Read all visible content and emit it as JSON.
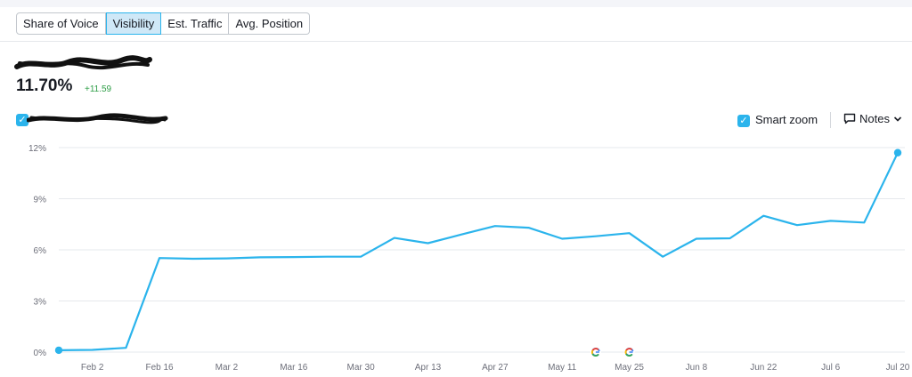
{
  "tabs": [
    {
      "label": "Share of Voice",
      "active": false
    },
    {
      "label": "Visibility",
      "active": true
    },
    {
      "label": "Est. Traffic",
      "active": false
    },
    {
      "label": "Avg. Position",
      "active": false
    }
  ],
  "summary": {
    "value": "11.70%",
    "delta": "+11.59"
  },
  "controls": {
    "smart_zoom_label": "Smart zoom",
    "smart_zoom_checked": true,
    "notes_label": "Notes"
  },
  "colors": {
    "line": "#2bb4ec",
    "grid": "#e6e8ec",
    "active_tab_bg": "#cfe8f7",
    "delta": "#2e9e47"
  },
  "icons": {
    "checkbox": "check-icon",
    "notes": "speech-bubble-icon",
    "caret": "chevron-down-icon",
    "annotation": "google-g-icon"
  },
  "chart_data": {
    "type": "line",
    "y_tick_labels": [
      "0%",
      "3%",
      "6%",
      "9%",
      "12%"
    ],
    "y_ticks": [
      0,
      3,
      6,
      9,
      12
    ],
    "ylim": [
      0,
      12
    ],
    "x_tick_labels": [
      "Feb 2",
      "Feb 16",
      "Mar 2",
      "Mar 16",
      "Mar 30",
      "Apr 13",
      "Apr 27",
      "May 11",
      "May 25",
      "Jun 8",
      "Jun 22",
      "Jul 6",
      "Jul 20"
    ],
    "x_dates": [
      "2025-01-26",
      "2025-02-02",
      "2025-02-09",
      "2025-02-16",
      "2025-02-23",
      "2025-03-02",
      "2025-03-09",
      "2025-03-16",
      "2025-03-23",
      "2025-03-30",
      "2025-04-06",
      "2025-04-13",
      "2025-04-20",
      "2025-04-27",
      "2025-05-04",
      "2025-05-11",
      "2025-05-18",
      "2025-05-25",
      "2025-06-01",
      "2025-06-08",
      "2025-06-15",
      "2025-06-22",
      "2025-06-29",
      "2025-07-06",
      "2025-07-13",
      "2025-07-20"
    ],
    "values": [
      0.11,
      0.13,
      0.25,
      5.52,
      5.48,
      5.5,
      5.56,
      5.58,
      5.6,
      5.6,
      6.7,
      6.39,
      6.9,
      7.4,
      7.3,
      6.65,
      6.8,
      6.98,
      5.6,
      6.65,
      6.68,
      8.0,
      7.45,
      7.7,
      7.6,
      11.7
    ],
    "grid": true,
    "annotations": [
      {
        "date": "2025-05-18",
        "icon": "google-g-icon"
      },
      {
        "date": "2025-05-25",
        "icon": "google-g-icon"
      }
    ]
  }
}
